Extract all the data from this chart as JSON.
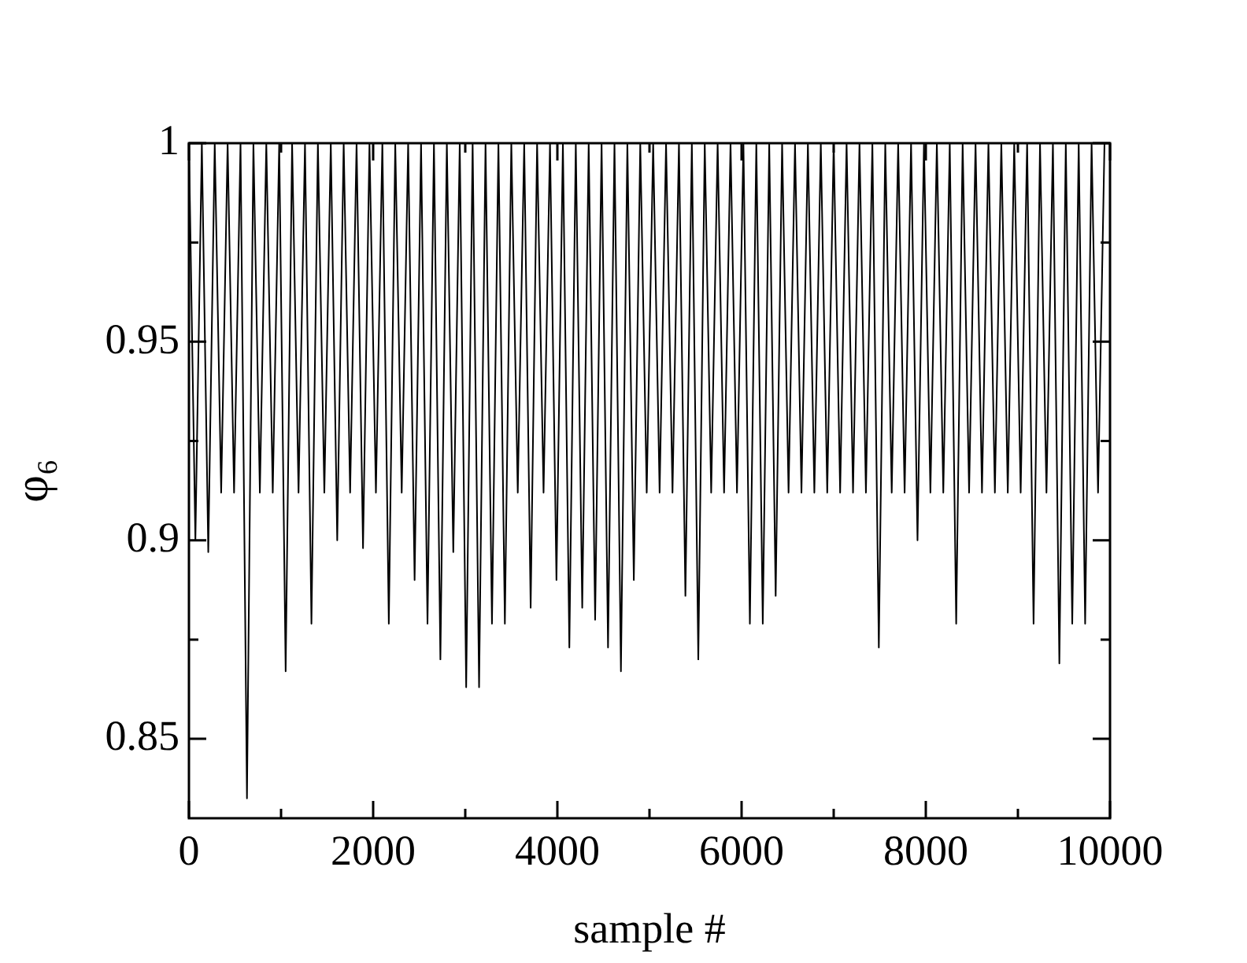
{
  "chart_data": {
    "type": "line",
    "xlabel": "sample #",
    "ylabel": "φ₆",
    "grid": false,
    "legend": false,
    "marker": "none",
    "line_style": "solid",
    "xlim": [
      0,
      10000
    ],
    "xticks": [
      0,
      {
        "value": 1000,
        "label": null
      },
      2000,
      {
        "value": 3000,
        "label": null
      },
      4000,
      {
        "value": 5000,
        "label": null
      },
      6000,
      {
        "value": 7000,
        "label": null
      },
      8000,
      {
        "value": 9000,
        "label": null
      },
      10000
    ],
    "ylim": [
      0.83,
      1
    ],
    "yticks": [
      0.85,
      {
        "value": 0.875,
        "label": null
      },
      0.9,
      {
        "value": 0.925,
        "label": null
      },
      0.95,
      {
        "value": 0.975,
        "label": null
      },
      1
    ],
    "x": [
      0,
      70,
      140,
      210,
      280,
      350,
      420,
      490,
      560,
      630,
      700,
      770,
      840,
      910,
      980,
      1050,
      1120,
      1190,
      1260,
      1330,
      1400,
      1470,
      1540,
      1610,
      1680,
      1750,
      1820,
      1890,
      1960,
      2030,
      2100,
      2170,
      2240,
      2310,
      2380,
      2450,
      2520,
      2590,
      2660,
      2730,
      2800,
      2870,
      2940,
      3010,
      3080,
      3150,
      3220,
      3290,
      3360,
      3430,
      3500,
      3570,
      3640,
      3710,
      3780,
      3850,
      3920,
      3990,
      4060,
      4130,
      4200,
      4270,
      4340,
      4410,
      4480,
      4550,
      4620,
      4690,
      4760,
      4830,
      4900,
      4970,
      5040,
      5110,
      5180,
      5250,
      5320,
      5390,
      5460,
      5530,
      5600,
      5670,
      5740,
      5810,
      5880,
      5950,
      6020,
      6090,
      6160,
      6230,
      6300,
      6370,
      6440,
      6510,
      6580,
      6650,
      6720,
      6790,
      6860,
      6930,
      7000,
      7070,
      7140,
      7210,
      7280,
      7350,
      7420,
      7490,
      7560,
      7630,
      7700,
      7770,
      7840,
      7910,
      7980,
      8050,
      8120,
      8190,
      8260,
      8330,
      8400,
      8470,
      8540,
      8610,
      8680,
      8750,
      8820,
      8890,
      8960,
      9030,
      9100,
      9170,
      9240,
      9310,
      9380,
      9450,
      9520,
      9590,
      9660,
      9730,
      9800,
      9870,
      9940,
      10000
    ],
    "series": [
      {
        "color": "#000000",
        "values": [
          1,
          0.9,
          1,
          0.897,
          1,
          0.912,
          1,
          0.912,
          1,
          0.835,
          1,
          0.912,
          1,
          0.912,
          1,
          0.867,
          1,
          0.912,
          1,
          0.879,
          1,
          0.912,
          1,
          0.9,
          1,
          0.912,
          1,
          0.898,
          1,
          0.912,
          1,
          0.879,
          1,
          0.912,
          1,
          0.89,
          1,
          0.879,
          1,
          0.87,
          1,
          0.897,
          1,
          0.863,
          1,
          0.863,
          1,
          0.879,
          1,
          0.879,
          1,
          0.912,
          1,
          0.883,
          1,
          0.912,
          1,
          0.89,
          1,
          0.873,
          1,
          0.883,
          1,
          0.88,
          1,
          0.873,
          1,
          0.867,
          1,
          0.89,
          1,
          0.912,
          1,
          0.912,
          1,
          0.912,
          1,
          0.886,
          1,
          0.87,
          1,
          0.912,
          1,
          0.912,
          1,
          0.912,
          1,
          0.879,
          1,
          0.879,
          1,
          0.886,
          1,
          0.912,
          1,
          0.912,
          1,
          0.912,
          1,
          0.912,
          1,
          0.912,
          1,
          0.912,
          1,
          0.912,
          1,
          0.873,
          1,
          0.912,
          1,
          0.912,
          1,
          0.9,
          1,
          0.912,
          1,
          0.912,
          1,
          0.879,
          1,
          0.912,
          1,
          0.912,
          1,
          0.912,
          1,
          0.912,
          1,
          0.912,
          1,
          0.879,
          1,
          0.912,
          1,
          0.869,
          1,
          0.879,
          1,
          0.879,
          1,
          0.912,
          1,
          1
        ]
      }
    ]
  }
}
